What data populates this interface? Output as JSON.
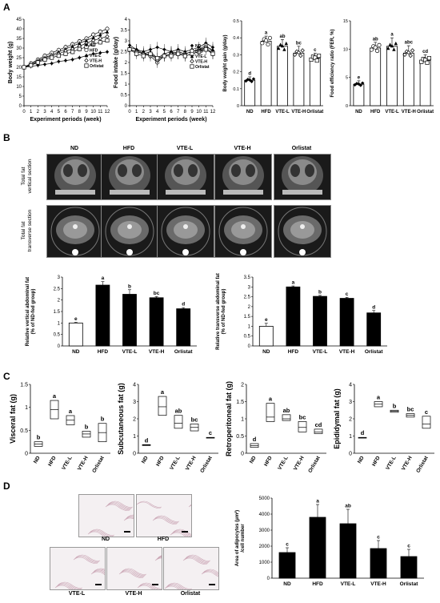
{
  "panels": {
    "A": "A",
    "B": "B",
    "C": "C",
    "D": "D"
  },
  "ct": {
    "groups": [
      "ND",
      "HFD",
      "VTE-L",
      "VTE-H",
      "Orlistat"
    ],
    "row1": "Total fat\nvertical section",
    "row2": "Total fat\ntransverse section"
  },
  "histology": {
    "labels": [
      "ND",
      "HFD",
      "VTE-L",
      "VTE-H",
      "Orlistat"
    ]
  },
  "chart_data": [
    {
      "id": "body-weight",
      "type": "line",
      "xlabel": "Experiment periods (week)",
      "ylabel": "Body weight (g)",
      "ylim": [
        0,
        45
      ],
      "yticks": [
        0,
        5,
        10,
        15,
        20,
        25,
        30,
        35,
        40,
        45
      ],
      "x": [
        0,
        1,
        2,
        3,
        4,
        5,
        6,
        7,
        8,
        9,
        10,
        11,
        12
      ],
      "series": [
        {
          "name": "ND",
          "marker": "filled-diamond",
          "values": [
            20,
            20.5,
            21,
            21.5,
            22,
            23,
            23.5,
            24,
            25,
            26,
            27,
            27.5,
            28
          ]
        },
        {
          "name": "HFD",
          "marker": "open-circle",
          "values": [
            20,
            22,
            24,
            26,
            27.5,
            29,
            30.5,
            32,
            33.5,
            35,
            37,
            38.5,
            40
          ]
        },
        {
          "name": "VTE-L",
          "marker": "filled-triangle",
          "values": [
            20,
            21.5,
            23.5,
            25,
            26.5,
            28,
            29.5,
            31,
            32.5,
            34,
            35.5,
            37,
            38.5
          ]
        },
        {
          "name": "VTE-H",
          "marker": "open-diamond",
          "values": [
            20,
            21,
            23,
            24.5,
            26,
            27,
            28.5,
            29.5,
            31,
            32.5,
            34,
            35,
            36
          ]
        },
        {
          "name": "Orlistat",
          "marker": "open-square",
          "values": [
            20,
            21,
            22.5,
            24,
            25,
            26,
            27,
            28,
            29.5,
            30.5,
            32,
            33,
            34
          ]
        }
      ]
    },
    {
      "id": "food-intake",
      "type": "line",
      "xlabel": "Experiment periods (week)",
      "ylabel": "Food intake (g/day)",
      "ylim": [
        0,
        4
      ],
      "yticks": [
        0,
        0.5,
        1,
        1.5,
        2,
        2.5,
        3,
        3.5,
        4
      ],
      "x": [
        0,
        1,
        2,
        3,
        4,
        5,
        6,
        7,
        8,
        9,
        10,
        11,
        12
      ],
      "series": [
        {
          "name": "ND",
          "values": [
            2.8,
            2.6,
            2.5,
            2.6,
            2.7,
            2.6,
            2.5,
            2.6,
            2.5,
            2.6,
            2.7,
            2.9,
            2.7
          ]
        },
        {
          "name": "HFD",
          "values": [
            2.6,
            2.5,
            2.4,
            2.3,
            2.0,
            2.3,
            2.4,
            2.5,
            2.4,
            2.5,
            2.6,
            2.8,
            2.5
          ]
        },
        {
          "name": "VTE-L",
          "values": [
            2.7,
            2.6,
            2.4,
            2.5,
            2.2,
            2.4,
            2.5,
            2.4,
            2.4,
            2.5,
            2.6,
            2.7,
            2.6
          ]
        },
        {
          "name": "VTE-H",
          "values": [
            2.6,
            2.5,
            2.4,
            2.4,
            2.1,
            2.3,
            2.4,
            2.4,
            2.3,
            2.4,
            2.5,
            2.7,
            2.4
          ]
        },
        {
          "name": "Orlistat",
          "values": [
            2.6,
            2.4,
            2.3,
            2.4,
            2.2,
            2.3,
            2.3,
            2.4,
            2.3,
            2.4,
            2.5,
            2.6,
            2.4
          ]
        }
      ]
    },
    {
      "id": "bw-gain",
      "type": "bar",
      "ylabel": "Body weight gain (g/day)",
      "ylim": [
        0,
        0.5
      ],
      "yticks": [
        0,
        0.1,
        0.2,
        0.3,
        0.4,
        0.5
      ],
      "categories": [
        "ND",
        "HFD",
        "VTE-L",
        "VTE-H",
        "Orlistat"
      ],
      "values": [
        0.15,
        0.38,
        0.35,
        0.31,
        0.28
      ],
      "errors": [
        0.02,
        0.03,
        0.04,
        0.04,
        0.03
      ],
      "letters": [
        "d",
        "a",
        "ab",
        "bc",
        "c"
      ]
    },
    {
      "id": "fer",
      "type": "bar",
      "ylabel": "Food efficiency ratio (FER, %)",
      "ylim": [
        0,
        15
      ],
      "yticks": [
        0,
        5,
        10,
        15
      ],
      "categories": [
        "ND",
        "HFD",
        "VTE-L",
        "VTE-H",
        "Orlistat"
      ],
      "values": [
        3.8,
        10.2,
        10.5,
        9.3,
        8.0
      ],
      "errors": [
        0.6,
        1.0,
        1.5,
        1.3,
        1.0
      ],
      "letters": [
        "e",
        "ab",
        "a",
        "abc",
        "cd"
      ]
    },
    {
      "id": "vertical-fat",
      "type": "bar",
      "ylabel": "Relative vertical abdominal fat (% of ND-fed group)",
      "ylim": [
        0,
        3
      ],
      "yticks": [
        0,
        0.5,
        1,
        1.5,
        2,
        2.5,
        3
      ],
      "categories": [
        "ND",
        "HFD",
        "VTE-L",
        "VTE-H",
        "Orlistat"
      ],
      "values": [
        1.0,
        2.65,
        2.25,
        2.1,
        1.62
      ],
      "errors": [
        0.03,
        0.15,
        0.2,
        0.05,
        0.05
      ],
      "letters": [
        "e",
        "a",
        "b",
        "bc",
        "d"
      ]
    },
    {
      "id": "transverse-fat",
      "type": "bar",
      "ylabel": "Relative transverse abdominal fat (% of ND-fed group)",
      "ylim": [
        0,
        3.5
      ],
      "yticks": [
        0,
        0.5,
        1,
        1.5,
        2,
        2.5,
        3,
        3.5
      ],
      "categories": [
        "ND",
        "HFD",
        "VTE-L",
        "VTE-H",
        "Orlistat"
      ],
      "values": [
        1.0,
        3.0,
        2.52,
        2.42,
        1.68
      ],
      "errors": [
        0.15,
        0.05,
        0.05,
        0.05,
        0.12
      ],
      "letters": [
        "e",
        "a",
        "b",
        "c",
        "d"
      ]
    },
    {
      "id": "visceral",
      "type": "box",
      "ylabel": "Visceral fat (g)",
      "ylim": [
        0,
        1.5
      ],
      "yticks": [
        0,
        0.5,
        1,
        1.5
      ],
      "categories": [
        "ND",
        "HFD",
        "VTE-L",
        "VTE-H",
        "Orlistat"
      ],
      "boxes": [
        [
          0.15,
          0.2,
          0.25
        ],
        [
          0.75,
          0.95,
          1.15
        ],
        [
          0.62,
          0.72,
          0.82
        ],
        [
          0.35,
          0.42,
          0.48
        ],
        [
          0.25,
          0.45,
          0.65
        ]
      ],
      "letters": [
        "b",
        "a",
        "a",
        "b",
        "b"
      ]
    },
    {
      "id": "subcutaneous",
      "type": "box",
      "ylabel": "Subcutaneous fat (g)",
      "ylim": [
        0,
        4
      ],
      "yticks": [
        0,
        1,
        2,
        3,
        4
      ],
      "categories": [
        "ND",
        "HFD",
        "VTE-L",
        "VTE-H",
        "Orlistat"
      ],
      "boxes": [
        [
          0.45,
          0.48,
          0.5
        ],
        [
          2.2,
          2.7,
          3.3
        ],
        [
          1.45,
          1.75,
          2.2
        ],
        [
          1.3,
          1.5,
          1.7
        ],
        [
          0.88,
          0.9,
          0.92
        ]
      ],
      "letters": [
        "d",
        "a",
        "ab",
        "bc",
        "c"
      ]
    },
    {
      "id": "retroperitoneal",
      "type": "box",
      "ylabel": "Retroperitoneal fat (g)",
      "ylim": [
        0,
        2
      ],
      "yticks": [
        0,
        0.5,
        1,
        1.5,
        2
      ],
      "categories": [
        "ND",
        "HFD",
        "VTE-L",
        "VTE-H",
        "Orlistat"
      ],
      "boxes": [
        [
          0.17,
          0.22,
          0.28
        ],
        [
          0.92,
          1.05,
          1.45
        ],
        [
          0.95,
          1.0,
          1.12
        ],
        [
          0.62,
          0.75,
          0.92
        ],
        [
          0.57,
          0.62,
          0.7
        ]
      ],
      "letters": [
        "d",
        "a",
        "ab",
        "bc",
        "cd"
      ]
    },
    {
      "id": "epididymal",
      "type": "box",
      "ylabel": "Epididymal fat (g)",
      "ylim": [
        0,
        4
      ],
      "yticks": [
        0,
        1,
        2,
        3,
        4
      ],
      "categories": [
        "ND",
        "HFD",
        "VTE-L",
        "VTE-H",
        "Orlistat"
      ],
      "boxes": [
        [
          0.88,
          0.9,
          0.92
        ],
        [
          2.7,
          2.85,
          3.0
        ],
        [
          2.38,
          2.45,
          2.5
        ],
        [
          2.1,
          2.2,
          2.3
        ],
        [
          1.45,
          1.7,
          2.15
        ]
      ],
      "letters": [
        "d",
        "a",
        "b",
        "bc",
        "c"
      ]
    },
    {
      "id": "adipocyte",
      "type": "bar",
      "ylabel": "Area of adipocytes (μm²) /cell number",
      "ylim": [
        0,
        5000
      ],
      "yticks": [
        0,
        1000,
        2000,
        3000,
        4000,
        5000
      ],
      "categories": [
        "ND",
        "HFD",
        "VTE-L",
        "VTE-H",
        "Orlistat"
      ],
      "values": [
        1600,
        3800,
        3400,
        1850,
        1350
      ],
      "errors": [
        300,
        800,
        900,
        500,
        450
      ],
      "letters": [
        "c",
        "a",
        "ab",
        "c",
        "c"
      ]
    }
  ]
}
